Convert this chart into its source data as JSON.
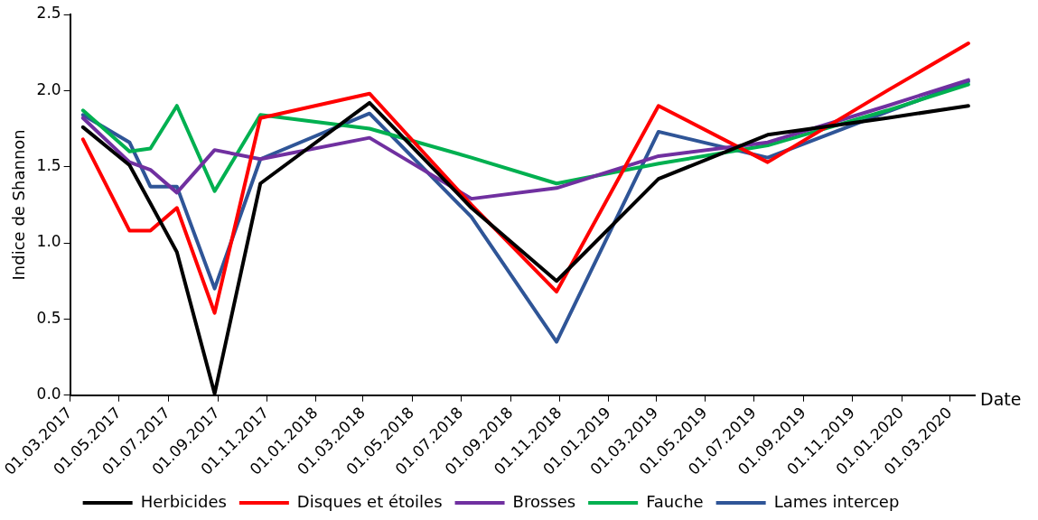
{
  "chart_data": {
    "type": "line",
    "xlabel": "Date",
    "ylabel": "Indice de Shannon",
    "x": [
      "2017-03-17",
      "2017-05-14",
      "2017-06-09",
      "2017-07-12",
      "2017-08-28",
      "2017-10-24",
      "2018-03-09",
      "2018-07-14",
      "2018-10-28",
      "2019-03-04",
      "2019-07-18",
      "2019-12-14",
      "2020-03-24"
    ],
    "series": [
      {
        "name": "Herbicides",
        "color": "#000000",
        "values": [
          1.76,
          1.51,
          1.26,
          0.94,
          0.01,
          1.39,
          1.92,
          1.23,
          0.75,
          1.42,
          1.71,
          1.82,
          1.9
        ]
      },
      {
        "name": "Disques et étoiles",
        "color": "#ff0000",
        "values": [
          1.68,
          1.08,
          1.08,
          1.23,
          0.54,
          1.82,
          1.98,
          1.25,
          0.68,
          1.9,
          1.53,
          2.0,
          2.31
        ]
      },
      {
        "name": "Brosses",
        "color": "#7030a0",
        "values": [
          1.82,
          1.53,
          1.48,
          1.33,
          1.61,
          1.55,
          1.69,
          1.29,
          1.36,
          1.57,
          1.66,
          1.9,
          2.07
        ]
      },
      {
        "name": "Fauche",
        "color": "#00b050",
        "values": [
          1.87,
          1.6,
          1.62,
          1.9,
          1.34,
          1.84,
          1.75,
          1.56,
          1.39,
          1.52,
          1.64,
          1.87,
          2.04
        ]
      },
      {
        "name": "Lames intercep",
        "color": "#2f5597",
        "values": [
          1.84,
          1.66,
          1.37,
          1.37,
          0.7,
          1.55,
          1.85,
          1.17,
          0.35,
          1.73,
          1.56,
          1.86,
          2.06
        ]
      }
    ],
    "xlim": [
      "2017-03-01",
      "2020-04-01"
    ],
    "xticks": [
      {
        "value": "2017-03-01",
        "label": "01.03.2017"
      },
      {
        "value": "2017-05-01",
        "label": "01.05.2017"
      },
      {
        "value": "2017-07-01",
        "label": "01.07.2017"
      },
      {
        "value": "2017-09-01",
        "label": "01.09.2017"
      },
      {
        "value": "2017-11-01",
        "label": "01.11.2017"
      },
      {
        "value": "2018-01-01",
        "label": "01.01.2018"
      },
      {
        "value": "2018-03-01",
        "label": "01.03.2018"
      },
      {
        "value": "2018-05-01",
        "label": "01.05.2018"
      },
      {
        "value": "2018-07-01",
        "label": "01.07.2018"
      },
      {
        "value": "2018-09-01",
        "label": "01.09.2018"
      },
      {
        "value": "2018-11-01",
        "label": "01.11.2018"
      },
      {
        "value": "2019-01-01",
        "label": "01.01.2019"
      },
      {
        "value": "2019-03-01",
        "label": "01.03.2019"
      },
      {
        "value": "2019-05-01",
        "label": "01.05.2019"
      },
      {
        "value": "2019-07-01",
        "label": "01.07.2019"
      },
      {
        "value": "2019-09-01",
        "label": "01.09.2019"
      },
      {
        "value": "2019-11-01",
        "label": "01.11.2019"
      },
      {
        "value": "2020-01-01",
        "label": "01.01.2020"
      },
      {
        "value": "2020-03-01",
        "label": "01.03.2020"
      }
    ],
    "ylim": [
      0,
      2.5
    ],
    "yticks": [
      {
        "value": 0,
        "label": "0.0"
      },
      {
        "value": 0.5,
        "label": "0.5"
      },
      {
        "value": 1,
        "label": "1.0"
      },
      {
        "value": 1.5,
        "label": "1.5"
      },
      {
        "value": 2,
        "label": "2.0"
      },
      {
        "value": 2.5,
        "label": "2.5"
      }
    ],
    "grid": false,
    "legend": "bottom",
    "marker": "none",
    "line_style": "solid"
  }
}
